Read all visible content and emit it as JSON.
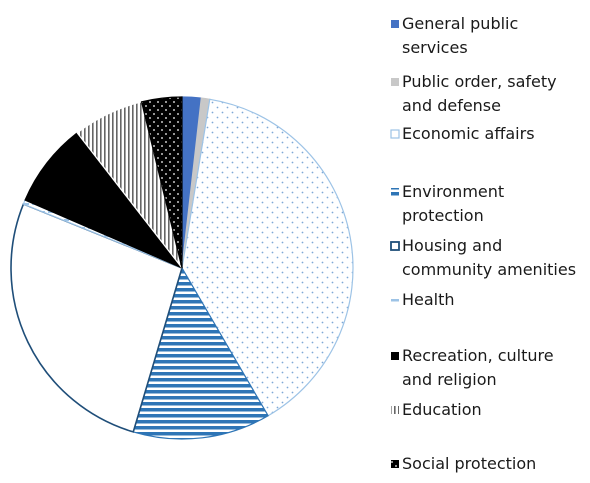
{
  "chart_data": {
    "type": "pie",
    "title": "",
    "slices": [
      {
        "label": "General public services",
        "value": 1.8,
        "color": "#4472c4",
        "pattern": "solid-blue"
      },
      {
        "label": " Public order, safety and defense",
        "value": 0.8,
        "color": "#c8c8c8",
        "pattern": "solid-grey"
      },
      {
        "label": "Economic affairs",
        "value": 39.0,
        "color": "#9dc3e6",
        "pattern": "dots-outline"
      },
      {
        "label": "Environment protection",
        "value": 13.0,
        "color": "#2e75b6",
        "pattern": "horizontal-stripes"
      },
      {
        "label": "Housing and community amenities",
        "value": 26.5,
        "color": "#1f4e79",
        "pattern": "outline-white"
      },
      {
        "label": "Health",
        "value": 0.4,
        "color": "#9dc3e6",
        "pattern": "dashed-light"
      },
      {
        "label": "Recreation, culture and religion",
        "value": 8.0,
        "color": "#000000",
        "pattern": "solid-black"
      },
      {
        "label": "Education",
        "value": 6.7,
        "color": "#555555",
        "pattern": "vertical-stripes"
      },
      {
        "label": "Social protection",
        "value": 3.8,
        "color": "#000000",
        "pattern": "black-dots"
      }
    ],
    "legend_position": "right"
  },
  "legend": [
    {
      "text": "General public\nservices"
    },
    {
      "text": " Public order, safety\nand defense"
    },
    {
      "text": "Economic affairs"
    },
    {
      "text": "Environment\nprotection"
    },
    {
      "text": "Housing and\ncommunity amenities"
    },
    {
      "text": "Health"
    },
    {
      "text": "Recreation, culture\nand religion"
    },
    {
      "text": "Education"
    },
    {
      "text": "Social protection"
    }
  ]
}
